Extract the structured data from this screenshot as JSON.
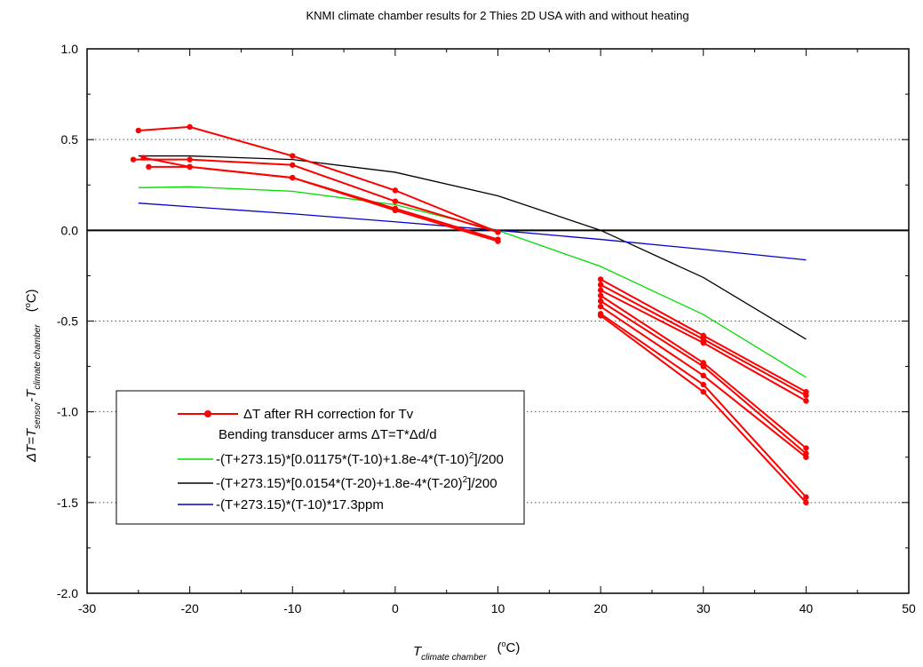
{
  "chart_data": {
    "type": "line",
    "title": "KNMI climate chamber results for 2 Thies 2D USA with and without heating",
    "xlabel": {
      "main": "T",
      "sub": "climate chamber",
      "unit": "(",
      "unit_sup": "o",
      "unit_end": "C)"
    },
    "ylabel": {
      "lhs": "ΔT=T",
      "sub1": "sensor",
      "mid": "-T",
      "sub2": "climate chamber",
      "unit": "(",
      "unit_sup": "o",
      "unit_end": "C)"
    },
    "xlim": [
      -30,
      50
    ],
    "ylim": [
      -2.0,
      1.0
    ],
    "x_ticks": [
      -30,
      -20,
      -10,
      0,
      10,
      20,
      30,
      40,
      50
    ],
    "x_tick_labels": [
      "-30",
      "-20",
      "-10",
      "0",
      "10",
      "20",
      "30",
      "40",
      "50"
    ],
    "y_ticks": [
      -2.0,
      -1.5,
      -1.0,
      -0.5,
      0.0,
      0.5,
      1.0
    ],
    "y_tick_labels": [
      "-2.0",
      "-1.5",
      "-1.0",
      "-0.5",
      "0.0",
      "0.5",
      "1.0"
    ],
    "grid": "dotted horizontal lines at major y ticks",
    "zero_line": true,
    "legend_position": "lower-left",
    "legend": [
      {
        "series": "measured",
        "label": "ΔT after RH correction for Tv",
        "marker": true
      },
      {
        "series": "header",
        "label": "Bending transducer arms ΔT=T*Δd/d",
        "marker": false
      },
      {
        "series": "green",
        "label_parts": [
          "-(T+273.15)*[0.01175*(T-10)+1.8e-4*(T-10)",
          "2",
          "]/200"
        ]
      },
      {
        "series": "black",
        "label_parts": [
          "-(T+273.15)*[0.0154*(T-20)+1.8e-4*(T-20)",
          "2",
          "]/200"
        ]
      },
      {
        "series": "blue",
        "label_parts": [
          "-(T+273.15)*(T-10)*17.3ppm"
        ]
      }
    ],
    "colors": {
      "measured": "#ff0000",
      "green": "#00dd00",
      "black": "#000000",
      "blue": "#0000cc",
      "grid": "#555555"
    },
    "measured_series": [
      {
        "x": [
          -25,
          -20,
          -10,
          0,
          10
        ],
        "y": [
          0.55,
          0.57,
          0.41,
          0.22,
          -0.01
        ]
      },
      {
        "x": [
          -25.5,
          -20,
          -10,
          0,
          10
        ],
        "y": [
          0.39,
          0.39,
          0.36,
          0.16,
          -0.01
        ]
      },
      {
        "x": [
          -24.5,
          -20,
          -10,
          0,
          10
        ],
        "y": [
          0.4,
          0.35,
          0.29,
          0.12,
          -0.05
        ]
      },
      {
        "x": [
          -24,
          -20,
          -10,
          0,
          10
        ],
        "y": [
          0.35,
          0.35,
          0.29,
          0.11,
          -0.06
        ]
      },
      {
        "x": [
          20,
          30,
          40
        ],
        "y": [
          -0.27,
          -0.58,
          -0.89
        ]
      },
      {
        "x": [
          20,
          30,
          40
        ],
        "y": [
          -0.3,
          -0.6,
          -0.91
        ]
      },
      {
        "x": [
          20,
          30,
          40
        ],
        "y": [
          -0.33,
          -0.62,
          -0.94
        ]
      },
      {
        "x": [
          20,
          30,
          40
        ],
        "y": [
          -0.36,
          -0.73,
          -1.2
        ]
      },
      {
        "x": [
          20,
          30,
          40
        ],
        "y": [
          -0.39,
          -0.75,
          -1.23
        ]
      },
      {
        "x": [
          20,
          30,
          40
        ],
        "y": [
          -0.42,
          -0.8,
          -1.25
        ]
      },
      {
        "x": [
          20,
          30,
          40
        ],
        "y": [
          -0.46,
          -0.85,
          -1.47
        ]
      },
      {
        "x": [
          20,
          30,
          40
        ],
        "y": [
          -0.47,
          -0.89,
          -1.5
        ]
      }
    ],
    "model_series": [
      {
        "id": "green",
        "x": [
          -25,
          -20,
          -10,
          0,
          10,
          20,
          30,
          40
        ],
        "y": [
          0.235,
          0.24,
          0.215,
          0.141,
          0.0,
          -0.199,
          -0.464,
          -0.81
        ]
      },
      {
        "id": "black",
        "x": [
          -25,
          -20,
          -10,
          0,
          10,
          20,
          30,
          40
        ],
        "y": [
          0.41,
          0.41,
          0.39,
          0.32,
          0.19,
          0.0,
          -0.26,
          -0.6
        ]
      },
      {
        "id": "blue",
        "x": [
          -25,
          -20,
          -10,
          0,
          10,
          20,
          30,
          40
        ],
        "y": [
          0.15,
          0.13,
          0.091,
          0.047,
          0.0,
          -0.05,
          -0.105,
          -0.163
        ]
      }
    ]
  }
}
